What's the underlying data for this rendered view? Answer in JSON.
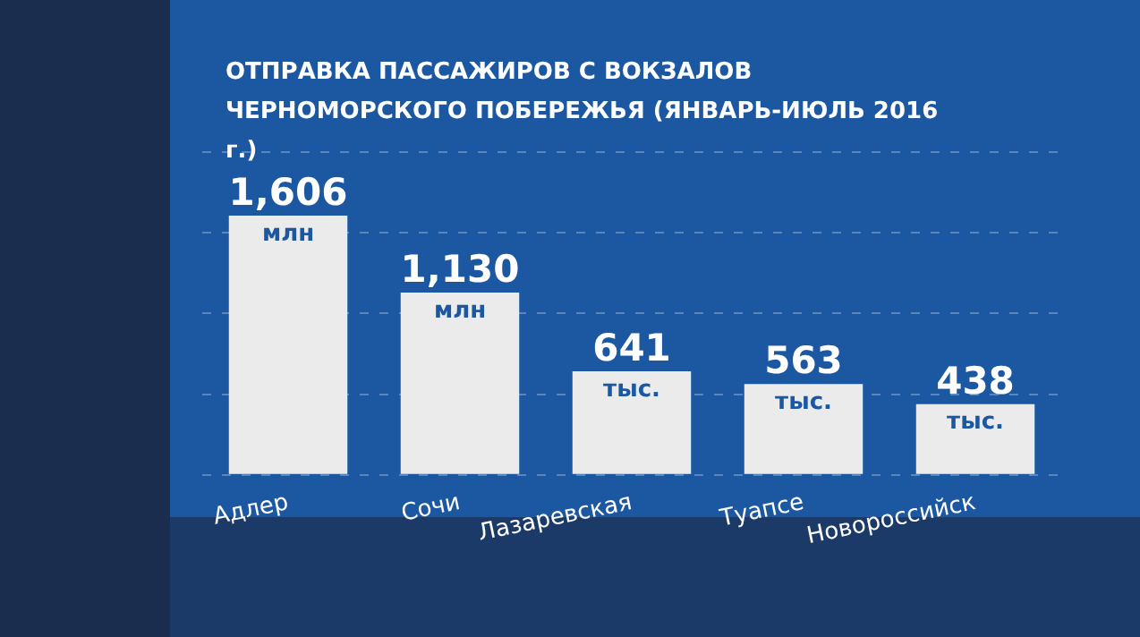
{
  "chart_data": {
    "type": "bar",
    "title": "ОТПРАВКА ПАССАЖИРОВ С ВОКЗАЛОВ ЧЕРНОМОРСКОГО ПОБЕРЕЖЬЯ (ЯНВАРЬ-ИЮЛЬ 2016 г.)",
    "categories": [
      "Адлер",
      "Сочи",
      "Лазаревская",
      "Туапсе",
      "Новороссийск"
    ],
    "values": [
      1606,
      1130,
      641,
      563,
      438
    ],
    "value_labels": [
      "1,606 млн",
      "1,130 млн",
      "641 тыс.",
      "563 тыс.",
      "438 тыс."
    ],
    "color": "#ebebeb",
    "grid": "y"
  }
}
